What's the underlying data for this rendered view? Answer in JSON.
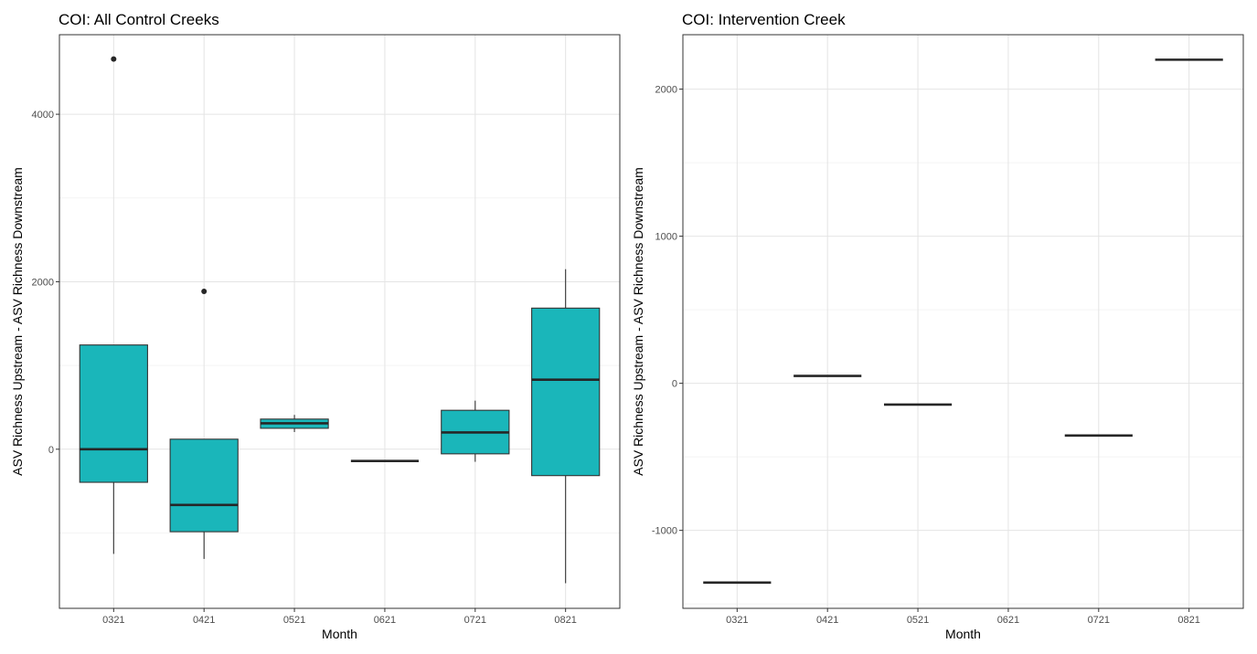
{
  "chart_data": [
    {
      "type": "boxplot",
      "title": "COI: All Control Creeks",
      "xlabel": "Month",
      "ylabel": "ASV Richness Upstream - ASV Richness Downstream",
      "categories": [
        "0321",
        "0421",
        "0521",
        "0621",
        "0721",
        "0821"
      ],
      "yticks": [
        0,
        2000,
        4000
      ],
      "ylim": [
        -1900,
        4950
      ],
      "grid": true,
      "fill_color": "#1AB6BA",
      "boxes": [
        {
          "category": "0321",
          "min": -1250,
          "q1": -395,
          "median": 0,
          "q3": 1245,
          "max": 1245,
          "outliers": [
            4660
          ]
        },
        {
          "category": "0421",
          "min": -1310,
          "q1": -985,
          "median": -665,
          "q3": 120,
          "max": 120,
          "outliers": [
            1885
          ]
        },
        {
          "category": "0521",
          "min": 205,
          "q1": 250,
          "median": 310,
          "q3": 360,
          "max": 410,
          "outliers": []
        },
        {
          "category": "0621",
          "min": -140,
          "q1": -140,
          "median": -140,
          "q3": -140,
          "max": -140,
          "outliers": []
        },
        {
          "category": "0721",
          "min": -150,
          "q1": -55,
          "median": 200,
          "q3": 465,
          "max": 580,
          "outliers": []
        },
        {
          "category": "0821",
          "min": -1600,
          "q1": -315,
          "median": 830,
          "q3": 1685,
          "max": 2150,
          "outliers": []
        }
      ]
    },
    {
      "type": "boxplot",
      "title": "COI: Intervention Creek",
      "xlabel": "Month",
      "ylabel": "ASV Richness Upstream - ASV Richness Downstream",
      "categories": [
        "0321",
        "0421",
        "0521",
        "0621",
        "0721",
        "0821"
      ],
      "yticks": [
        -1000,
        0,
        1000,
        2000
      ],
      "ylim": [
        -1530,
        2370
      ],
      "grid": true,
      "fill_color": "#1AB6BA",
      "boxes": [
        {
          "category": "0321",
          "min": -1355,
          "q1": -1355,
          "median": -1355,
          "q3": -1355,
          "max": -1355,
          "outliers": []
        },
        {
          "category": "0421",
          "min": 50,
          "q1": 50,
          "median": 50,
          "q3": 50,
          "max": 50,
          "outliers": []
        },
        {
          "category": "0521",
          "min": -145,
          "q1": -145,
          "median": -145,
          "q3": -145,
          "max": -145,
          "outliers": []
        },
        {
          "category": "0721",
          "min": -355,
          "q1": -355,
          "median": -355,
          "q3": -355,
          "max": -355,
          "outliers": []
        },
        {
          "category": "0821",
          "min": 2200,
          "q1": 2200,
          "median": 2200,
          "q3": 2200,
          "max": 2200,
          "outliers": []
        }
      ]
    }
  ]
}
